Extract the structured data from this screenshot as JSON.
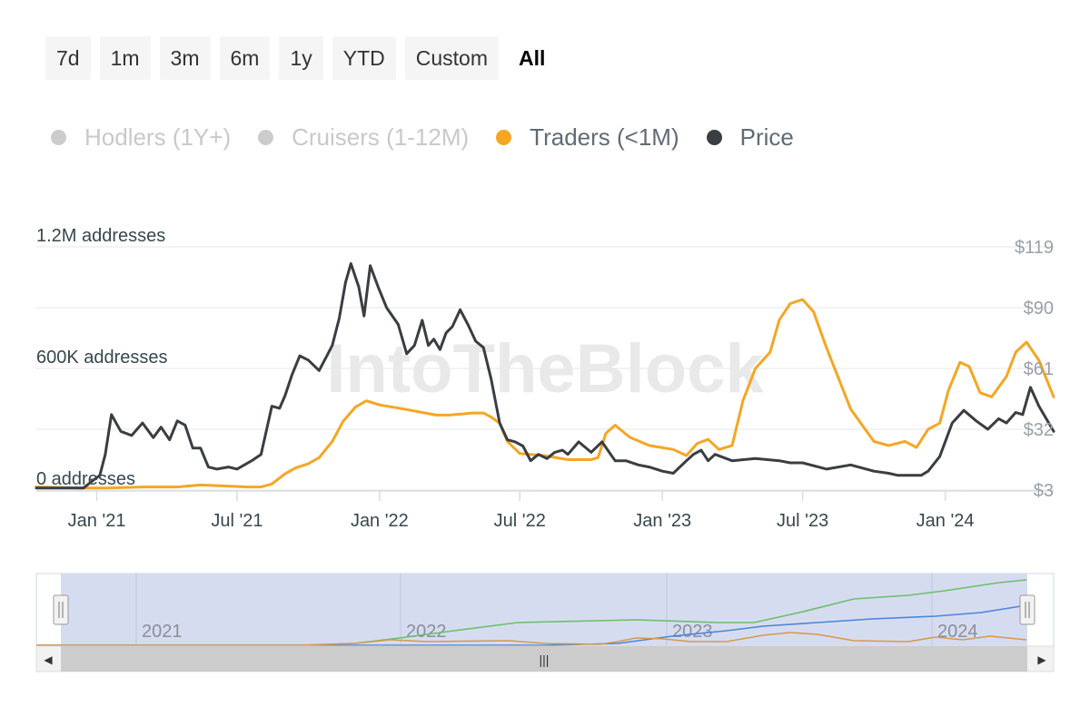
{
  "range_selector": {
    "buttons": [
      "7d",
      "1m",
      "3m",
      "6m",
      "1y",
      "YTD",
      "Custom",
      "All"
    ],
    "active": "All"
  },
  "legend": [
    {
      "label": "Hodlers (1Y+)",
      "color": "#cccccc",
      "enabled": false
    },
    {
      "label": "Cruisers (1-12M)",
      "color": "#cccccc",
      "enabled": false
    },
    {
      "label": "Traders (<1M)",
      "color": "#f5a623",
      "enabled": true
    },
    {
      "label": "Price",
      "color": "#3a3d42",
      "enabled": true
    }
  ],
  "watermark": "IntoTheBlock",
  "colors": {
    "traders": "#f5a623",
    "price": "#3a3d42",
    "grid": "#ececec",
    "left_axis_text": "#37474f",
    "right_axis_text": "#9aa0a6",
    "navigator_mask": "#d4daef",
    "navigator_green": "#6abf69",
    "navigator_blue": "#4a86d8",
    "navigator_orange": "#d59a4a"
  },
  "chart_data": {
    "type": "line",
    "left_axis": {
      "ticks": [
        "0 addresses",
        "600K addresses",
        "1.2M addresses"
      ],
      "range": [
        0,
        1200000
      ]
    },
    "right_axis": {
      "ticks": [
        "$3",
        "$32",
        "$61",
        "$90",
        "$119"
      ],
      "range": [
        3,
        119
      ],
      "clipped": [
        "$61",
        "$32"
      ]
    },
    "x_axis": {
      "ticks": [
        "Jan '21",
        "Jul '21",
        "Jan '22",
        "Jul '22",
        "Jan '23",
        "Jul '23",
        "Jan '24"
      ],
      "range": [
        "2020-10-15",
        "2024-05-20"
      ]
    },
    "series": [
      {
        "name": "Traders (<1M)",
        "axis": "left",
        "x": [
          "2020-10-15",
          "2020-12-15",
          "2021-01-15",
          "2021-03-01",
          "2021-04-15",
          "2021-05-15",
          "2021-06-15",
          "2021-07-15",
          "2021-08-01",
          "2021-08-15",
          "2021-09-01",
          "2021-09-15",
          "2021-10-01",
          "2021-10-15",
          "2021-11-01",
          "2021-11-15",
          "2021-12-01",
          "2021-12-15",
          "2022-01-01",
          "2022-02-01",
          "2022-03-01",
          "2022-03-15",
          "2022-04-01",
          "2022-05-01",
          "2022-05-15",
          "2022-05-25",
          "2022-06-05",
          "2022-06-15",
          "2022-07-01",
          "2022-08-01",
          "2022-09-01",
          "2022-10-01",
          "2022-10-10",
          "2022-10-20",
          "2022-11-01",
          "2022-11-20",
          "2022-12-15",
          "2023-01-15",
          "2023-02-01",
          "2023-02-15",
          "2023-03-01",
          "2023-03-15",
          "2023-04-01",
          "2023-04-15",
          "2023-05-01",
          "2023-05-20",
          "2023-06-01",
          "2023-06-15",
          "2023-07-01",
          "2023-07-15",
          "2023-08-01",
          "2023-09-01",
          "2023-10-01",
          "2023-10-20",
          "2023-11-10",
          "2023-11-25",
          "2023-12-10",
          "2023-12-25",
          "2024-01-05",
          "2024-01-20",
          "2024-02-01",
          "2024-02-15",
          "2024-03-01",
          "2024-03-20",
          "2024-04-01",
          "2024-04-15",
          "2024-05-01",
          "2024-05-20"
        ],
        "values": [
          15000,
          10000,
          10000,
          15000,
          15000,
          25000,
          20000,
          15000,
          15000,
          30000,
          80000,
          110000,
          130000,
          160000,
          240000,
          340000,
          410000,
          440000,
          420000,
          400000,
          380000,
          370000,
          370000,
          380000,
          380000,
          360000,
          330000,
          240000,
          180000,
          170000,
          150000,
          150000,
          160000,
          280000,
          320000,
          260000,
          220000,
          200000,
          170000,
          230000,
          250000,
          200000,
          220000,
          440000,
          600000,
          680000,
          840000,
          920000,
          940000,
          880000,
          700000,
          400000,
          240000,
          220000,
          240000,
          210000,
          300000,
          330000,
          490000,
          630000,
          610000,
          480000,
          460000,
          560000,
          680000,
          730000,
          640000,
          460000
        ]
      },
      {
        "name": "Price",
        "axis": "right",
        "x": [
          "2020-10-15",
          "2020-12-15",
          "2020-12-25",
          "2021-01-05",
          "2021-01-12",
          "2021-01-20",
          "2021-02-01",
          "2021-02-15",
          "2021-03-01",
          "2021-03-15",
          "2021-03-25",
          "2021-04-05",
          "2021-04-15",
          "2021-04-25",
          "2021-05-05",
          "2021-05-15",
          "2021-05-25",
          "2021-06-05",
          "2021-06-20",
          "2021-07-01",
          "2021-07-20",
          "2021-08-01",
          "2021-08-15",
          "2021-08-25",
          "2021-09-01",
          "2021-09-10",
          "2021-09-20",
          "2021-10-01",
          "2021-10-15",
          "2021-10-25",
          "2021-11-01",
          "2021-11-10",
          "2021-11-18",
          "2021-11-25",
          "2021-12-05",
          "2021-12-12",
          "2021-12-20",
          "2021-12-30",
          "2022-01-10",
          "2022-01-25",
          "2022-02-05",
          "2022-02-15",
          "2022-02-25",
          "2022-03-05",
          "2022-03-12",
          "2022-03-20",
          "2022-03-28",
          "2022-04-05",
          "2022-04-15",
          "2022-04-25",
          "2022-05-05",
          "2022-05-15",
          "2022-05-25",
          "2022-06-05",
          "2022-06-15",
          "2022-06-25",
          "2022-07-05",
          "2022-07-15",
          "2022-07-25",
          "2022-08-05",
          "2022-08-15",
          "2022-08-25",
          "2022-09-01",
          "2022-09-15",
          "2022-10-01",
          "2022-10-15",
          "2022-11-01",
          "2022-11-15",
          "2022-12-01",
          "2022-12-15",
          "2023-01-01",
          "2023-01-15",
          "2023-02-01",
          "2023-02-10",
          "2023-02-20",
          "2023-03-01",
          "2023-03-10",
          "2023-04-01",
          "2023-05-01",
          "2023-06-01",
          "2023-06-15",
          "2023-07-01",
          "2023-08-01",
          "2023-09-01",
          "2023-10-01",
          "2023-10-20",
          "2023-11-01",
          "2023-11-20",
          "2023-12-01",
          "2023-12-10",
          "2023-12-25",
          "2024-01-10",
          "2024-01-25",
          "2024-02-10",
          "2024-02-25",
          "2024-03-10",
          "2024-03-20",
          "2024-04-01",
          "2024-04-10",
          "2024-04-20",
          "2024-05-01",
          "2024-05-20"
        ],
        "values": [
          4,
          4,
          7,
          10,
          20,
          39,
          31,
          29,
          35,
          28,
          33,
          27,
          36,
          34,
          23,
          23,
          14,
          13,
          14,
          13,
          17,
          20,
          43,
          42,
          48,
          58,
          67,
          65,
          60,
          67,
          72,
          85,
          102,
          111,
          100,
          86,
          110,
          100,
          90,
          82,
          68,
          72,
          84,
          72,
          75,
          70,
          78,
          81,
          89,
          82,
          74,
          71,
          56,
          35,
          27,
          26,
          24,
          17,
          20,
          18,
          21,
          22,
          20,
          26,
          21,
          26,
          17,
          17,
          15,
          14,
          12,
          11,
          17,
          20,
          22,
          17,
          20,
          17,
          18,
          17,
          16,
          16,
          13,
          15,
          12,
          11,
          10,
          10,
          10,
          12,
          19,
          35,
          41,
          36,
          32,
          37,
          35,
          40,
          39,
          52,
          43,
          31
        ]
      }
    ]
  },
  "navigator": {
    "year_labels": [
      "2021",
      "2022",
      "2023",
      "2024"
    ],
    "scroll_grip": "|||",
    "left_arrow": "◀",
    "right_arrow": "▶"
  }
}
